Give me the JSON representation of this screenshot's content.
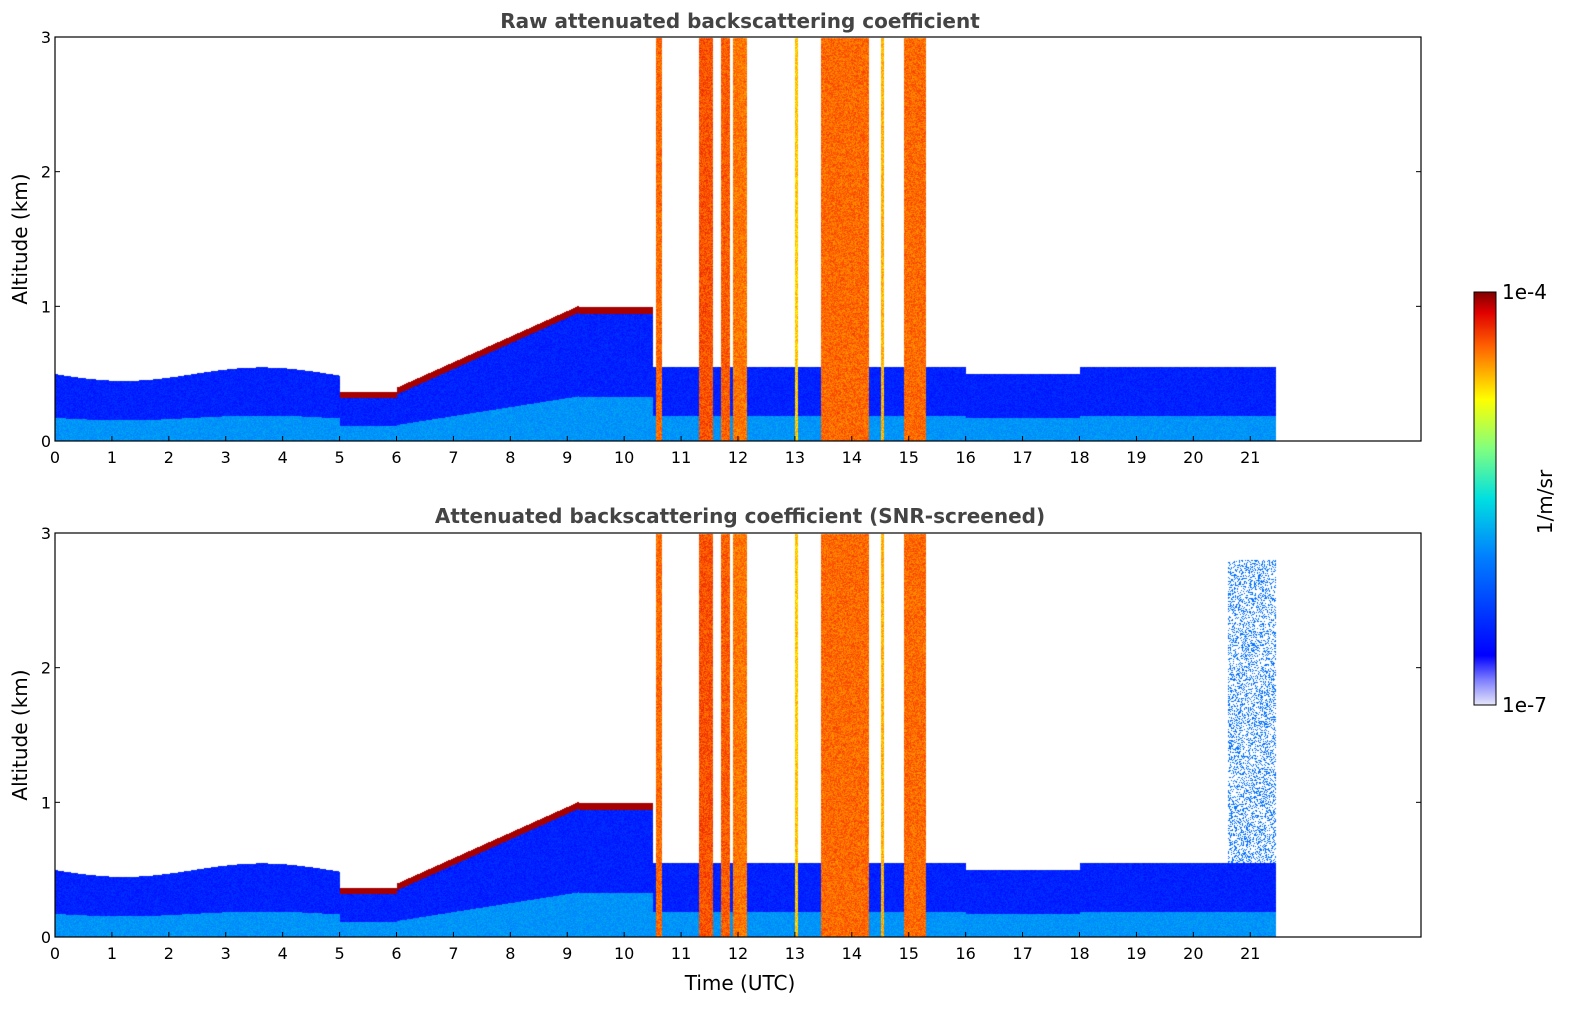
{
  "chart_data": [
    {
      "type": "heatmap",
      "title": "Raw attenuated backscattering coefficient",
      "xlabel": "",
      "ylabel": "Altitude (km)",
      "xlim": [
        0,
        24
      ],
      "ylim": [
        0,
        3
      ],
      "xticks": [
        "0",
        "1",
        "2",
        "3",
        "4",
        "5",
        "6",
        "7",
        "8",
        "9",
        "10",
        "11",
        "12",
        "13",
        "14",
        "15",
        "16",
        "17",
        "18",
        "19",
        "20",
        "21"
      ],
      "yticks": [
        "0",
        "1",
        "2",
        "3"
      ],
      "data_end_hour": 21.45,
      "screened": false
    },
    {
      "type": "heatmap",
      "title": "Attenuated backscattering coefficient (SNR-screened)",
      "xlabel": "Time (UTC)",
      "ylabel": "Altitude (km)",
      "xlim": [
        0,
        24
      ],
      "ylim": [
        0,
        3
      ],
      "xticks": [
        "0",
        "1",
        "2",
        "3",
        "4",
        "5",
        "6",
        "7",
        "8",
        "9",
        "10",
        "11",
        "12",
        "13",
        "14",
        "15",
        "16",
        "17",
        "18",
        "19",
        "20",
        "21"
      ],
      "yticks": [
        "0",
        "1",
        "2",
        "3"
      ],
      "data_end_hour": 21.45,
      "screened": true
    }
  ],
  "colorbar": {
    "label": "1/m/sr",
    "max_label": "1e-4",
    "min_label": "1e-7",
    "colormap": "jet",
    "scale": "log"
  },
  "colors": {
    "title": "#444444",
    "cloud_core": "#7a0000",
    "background": "#ffffff"
  }
}
